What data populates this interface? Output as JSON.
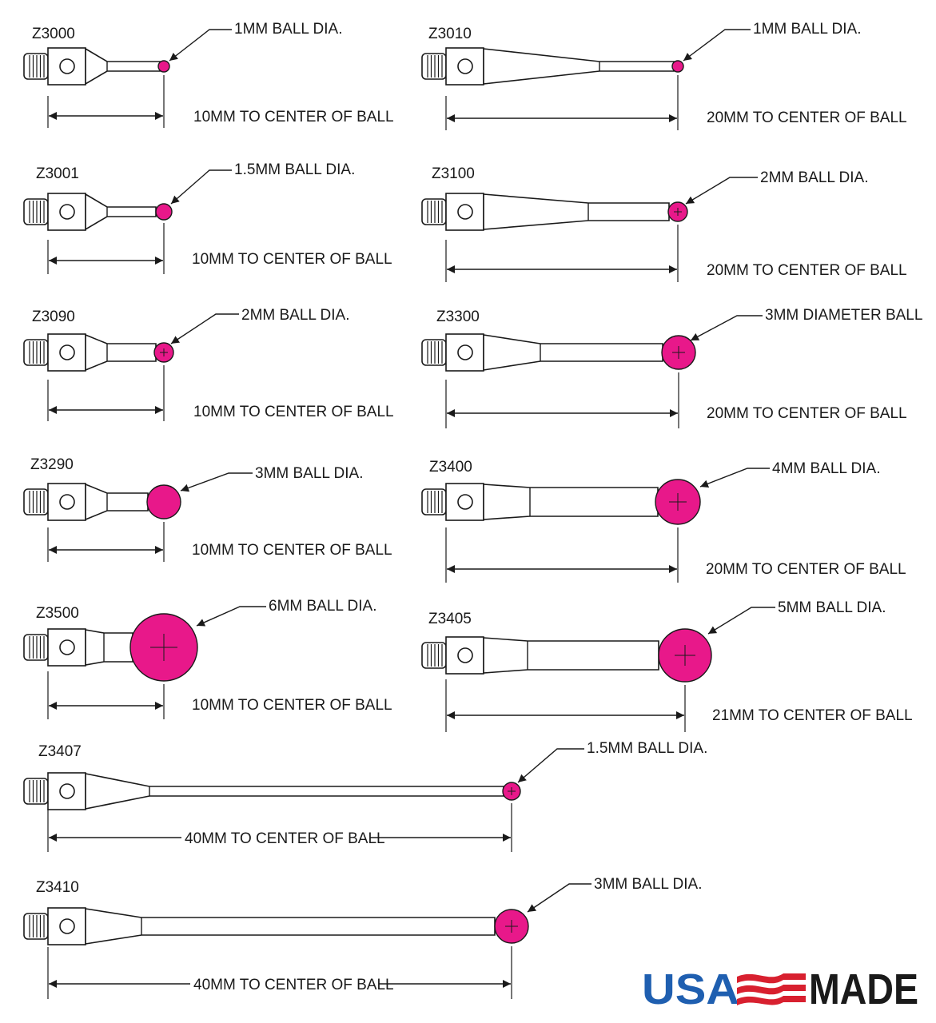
{
  "colors": {
    "ball": "#e8188a",
    "line": "#1a1a1a",
    "logo_blue": "#1f5fb0",
    "logo_red": "#d8202f",
    "logo_dark": "#1a1a1a"
  },
  "styli": [
    {
      "id": "z3000",
      "model": "Z3000",
      "ball_label": "1MM BALL DIA.",
      "dim_label": "10MM TO CENTER OF BALL",
      "length_mm": 10,
      "ball_mm": 1
    },
    {
      "id": "z3010",
      "model": "Z3010",
      "ball_label": "1MM BALL DIA.",
      "dim_label": "20MM  TO CENTER OF BALL",
      "length_mm": 20,
      "ball_mm": 1
    },
    {
      "id": "z3001",
      "model": "Z3001",
      "ball_label": "1.5MM BALL DIA.",
      "dim_label": "10MM  TO CENTER OF BALL",
      "length_mm": 10,
      "ball_mm": 1.5
    },
    {
      "id": "z3100",
      "model": "Z3100",
      "ball_label": "2MM BALL DIA.",
      "dim_label": "20MM  TO CENTER OF BALL",
      "length_mm": 20,
      "ball_mm": 2
    },
    {
      "id": "z3090",
      "model": "Z3090",
      "ball_label": "2MM BALL DIA.",
      "dim_label": "10MM  TO CENTER OF BALL",
      "length_mm": 10,
      "ball_mm": 2
    },
    {
      "id": "z3300",
      "model": "Z3300",
      "ball_label": "3MM DIAMETER BALL",
      "dim_label": "20MM  TO CENTER OF BALL",
      "length_mm": 20,
      "ball_mm": 3
    },
    {
      "id": "z3290",
      "model": "Z3290",
      "ball_label": "3MM BALL DIA.",
      "dim_label": "10MM  TO CENTER OF BALL",
      "length_mm": 10,
      "ball_mm": 3
    },
    {
      "id": "z3400",
      "model": "Z3400",
      "ball_label": "4MM BALL DIA.",
      "dim_label": "20MM  TO CENTER OF BALL",
      "length_mm": 20,
      "ball_mm": 4
    },
    {
      "id": "z3500",
      "model": "Z3500",
      "ball_label": "6MM BALL DIA.",
      "dim_label": "10MM  TO CENTER OF BALL",
      "length_mm": 10,
      "ball_mm": 6
    },
    {
      "id": "z3405",
      "model": "Z3405",
      "ball_label": "5MM BALL DIA.",
      "dim_label": "21MM  TO CENTER OF BALL",
      "length_mm": 21,
      "ball_mm": 5
    },
    {
      "id": "z3407",
      "model": "Z3407",
      "ball_label": "1.5MM BALL DIA.",
      "dim_label": "40MM  TO CENTER OF BALL",
      "length_mm": 40,
      "ball_mm": 1.5
    },
    {
      "id": "z3410",
      "model": "Z3410",
      "ball_label": "3MM BALL DIA.",
      "dim_label": "40MM  TO CENTER OF BALL",
      "length_mm": 40,
      "ball_mm": 3
    }
  ],
  "logo": {
    "word1": "USA",
    "word2": "MADE"
  }
}
